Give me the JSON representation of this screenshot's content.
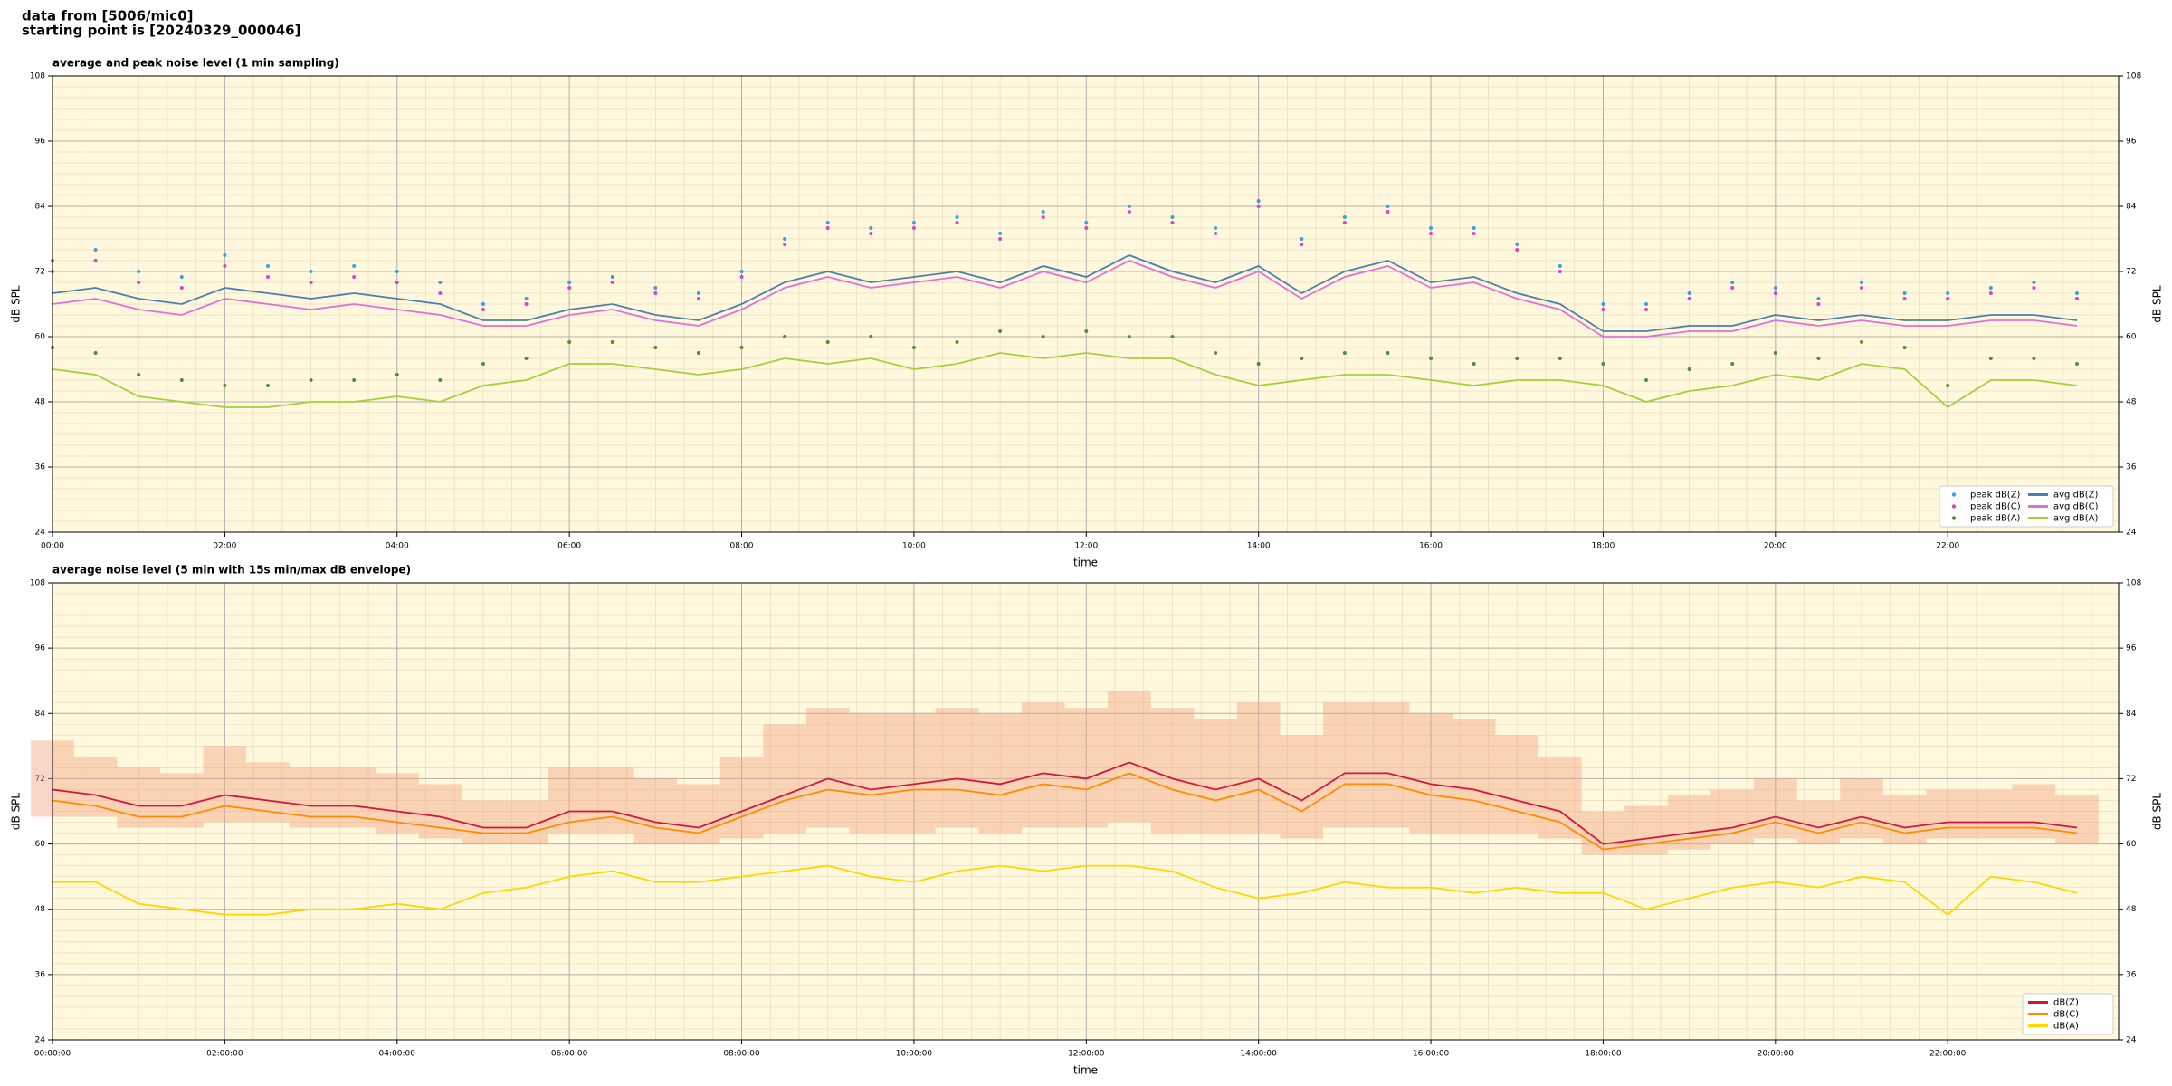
{
  "header": {
    "line1": "data from [5006/mic0]",
    "line2": "starting point is [20240329_000046]"
  },
  "chart_data": [
    {
      "type": "line",
      "title": "average and peak noise level (1 min sampling)",
      "xlabel": "time",
      "ylabel": "dB SPL",
      "y2label": "dB SPL",
      "x": [
        "00:00",
        "00:30",
        "01:00",
        "01:30",
        "02:00",
        "02:30",
        "03:00",
        "03:30",
        "04:00",
        "04:30",
        "05:00",
        "05:30",
        "06:00",
        "06:30",
        "07:00",
        "07:30",
        "08:00",
        "08:30",
        "09:00",
        "09:30",
        "10:00",
        "10:30",
        "11:00",
        "11:30",
        "12:00",
        "12:30",
        "13:00",
        "13:30",
        "14:00",
        "14:30",
        "15:00",
        "15:30",
        "16:00",
        "16:30",
        "17:00",
        "17:30",
        "18:00",
        "18:30",
        "19:00",
        "19:30",
        "20:00",
        "20:30",
        "21:00",
        "21:30",
        "22:00",
        "22:30",
        "23:00",
        "23:30"
      ],
      "xlim": [
        "00:00",
        "23:59"
      ],
      "xticks": [
        "00:00",
        "02:00",
        "04:00",
        "06:00",
        "08:00",
        "10:00",
        "12:00",
        "14:00",
        "16:00",
        "18:00",
        "20:00",
        "22:00"
      ],
      "ylim": [
        24,
        108
      ],
      "yticks": [
        24,
        36,
        48,
        60,
        72,
        84,
        96,
        108
      ],
      "y2lim": [
        24,
        108
      ],
      "y2ticks": [
        24,
        36,
        48,
        60,
        72,
        84,
        96,
        108
      ],
      "grid": true,
      "minor_grid": true,
      "legend": "lower right",
      "legend_columns": 2,
      "series": [
        {
          "name": "peak dB(Z)",
          "type": "scatter",
          "color": "#3aa0e6",
          "values": [
            74,
            76,
            72,
            71,
            75,
            73,
            72,
            73,
            72,
            70,
            66,
            67,
            70,
            71,
            69,
            68,
            72,
            78,
            81,
            80,
            81,
            82,
            79,
            83,
            81,
            84,
            82,
            80,
            85,
            78,
            82,
            84,
            80,
            80,
            77,
            73,
            66,
            66,
            68,
            70,
            69,
            67,
            70,
            68,
            68,
            69,
            70,
            68
          ]
        },
        {
          "name": "peak dB(C)",
          "type": "scatter",
          "color": "#e040d0",
          "values": [
            72,
            74,
            70,
            69,
            73,
            71,
            70,
            71,
            70,
            68,
            65,
            66,
            69,
            70,
            68,
            67,
            71,
            77,
            80,
            79,
            80,
            81,
            78,
            82,
            80,
            83,
            81,
            79,
            84,
            77,
            81,
            83,
            79,
            79,
            76,
            72,
            65,
            65,
            67,
            69,
            68,
            66,
            69,
            67,
            67,
            68,
            69,
            67
          ]
        },
        {
          "name": "peak dB(A)",
          "type": "scatter",
          "color": "#4f8f3a",
          "values": [
            58,
            57,
            53,
            52,
            51,
            51,
            52,
            52,
            53,
            52,
            55,
            56,
            59,
            59,
            58,
            57,
            58,
            60,
            59,
            60,
            58,
            59,
            61,
            60,
            61,
            60,
            60,
            57,
            55,
            56,
            57,
            57,
            56,
            55,
            56,
            56,
            55,
            52,
            54,
            55,
            57,
            56,
            59,
            58,
            51,
            56,
            56,
            55
          ]
        },
        {
          "name": "avg dB(Z)",
          "type": "line",
          "color": "#4a7fb0",
          "values": [
            68,
            69,
            67,
            66,
            69,
            68,
            67,
            68,
            67,
            66,
            63,
            63,
            65,
            66,
            64,
            63,
            66,
            70,
            72,
            70,
            71,
            72,
            70,
            73,
            71,
            75,
            72,
            70,
            73,
            68,
            72,
            74,
            70,
            71,
            68,
            66,
            61,
            61,
            62,
            62,
            64,
            63,
            64,
            63,
            63,
            64,
            64,
            63
          ]
        },
        {
          "name": "avg dB(C)",
          "type": "line",
          "color": "#e070d8",
          "values": [
            66,
            67,
            65,
            64,
            67,
            66,
            65,
            66,
            65,
            64,
            62,
            62,
            64,
            65,
            63,
            62,
            65,
            69,
            71,
            69,
            70,
            71,
            69,
            72,
            70,
            74,
            71,
            69,
            72,
            67,
            71,
            73,
            69,
            70,
            67,
            65,
            60,
            60,
            61,
            61,
            63,
            62,
            63,
            62,
            62,
            63,
            63,
            62
          ]
        },
        {
          "name": "avg dB(A)",
          "type": "line",
          "color": "#a4cf3c",
          "values": [
            54,
            53,
            49,
            48,
            47,
            47,
            48,
            48,
            49,
            48,
            51,
            52,
            55,
            55,
            54,
            53,
            54,
            56,
            55,
            56,
            54,
            55,
            57,
            56,
            57,
            56,
            56,
            53,
            51,
            52,
            53,
            53,
            52,
            51,
            52,
            52,
            51,
            48,
            50,
            51,
            53,
            52,
            55,
            54,
            47,
            52,
            52,
            51
          ]
        }
      ]
    },
    {
      "type": "line",
      "title": "average noise level (5 min with 15s min/max dB envelope)",
      "xlabel": "time",
      "ylabel": "dB SPL",
      "y2label": "dB SPL",
      "x": [
        "00:00:00",
        "00:30:00",
        "01:00:00",
        "01:30:00",
        "02:00:00",
        "02:30:00",
        "03:00:00",
        "03:30:00",
        "04:00:00",
        "04:30:00",
        "05:00:00",
        "05:30:00",
        "06:00:00",
        "06:30:00",
        "07:00:00",
        "07:30:00",
        "08:00:00",
        "08:30:00",
        "09:00:00",
        "09:30:00",
        "10:00:00",
        "10:30:00",
        "11:00:00",
        "11:30:00",
        "12:00:00",
        "12:30:00",
        "13:00:00",
        "13:30:00",
        "14:00:00",
        "14:30:00",
        "15:00:00",
        "15:30:00",
        "16:00:00",
        "16:30:00",
        "17:00:00",
        "17:30:00",
        "18:00:00",
        "18:30:00",
        "19:00:00",
        "19:30:00",
        "20:00:00",
        "20:30:00",
        "21:00:00",
        "21:30:00",
        "22:00:00",
        "22:30:00",
        "23:00:00",
        "23:30:00"
      ],
      "xlim": [
        "00:00:00",
        "23:59:00"
      ],
      "xticks": [
        "00:00:00",
        "02:00:00",
        "04:00:00",
        "06:00:00",
        "08:00:00",
        "10:00:00",
        "12:00:00",
        "14:00:00",
        "16:00:00",
        "18:00:00",
        "20:00:00",
        "22:00:00"
      ],
      "ylim": [
        24,
        108
      ],
      "yticks": [
        24,
        36,
        48,
        60,
        72,
        84,
        96,
        108
      ],
      "y2lim": [
        24,
        108
      ],
      "y2ticks": [
        24,
        36,
        48,
        60,
        72,
        84,
        96,
        108
      ],
      "grid": true,
      "minor_grid": true,
      "legend": "lower right",
      "legend_columns": 1,
      "envelope": {
        "color": "#f4a582",
        "low": [
          65,
          65,
          63,
          63,
          64,
          64,
          63,
          63,
          62,
          61,
          60,
          60,
          62,
          62,
          60,
          60,
          61,
          62,
          63,
          62,
          62,
          63,
          62,
          63,
          63,
          64,
          62,
          62,
          62,
          61,
          63,
          63,
          62,
          62,
          62,
          61,
          58,
          58,
          59,
          60,
          61,
          60,
          61,
          60,
          61,
          61,
          61,
          60
        ],
        "high": [
          79,
          76,
          74,
          73,
          78,
          75,
          74,
          74,
          73,
          71,
          68,
          68,
          74,
          74,
          72,
          71,
          76,
          82,
          85,
          84,
          84,
          85,
          84,
          86,
          85,
          88,
          85,
          83,
          86,
          80,
          86,
          86,
          84,
          83,
          80,
          76,
          66,
          67,
          69,
          70,
          72,
          68,
          72,
          69,
          70,
          70,
          71,
          69
        ]
      },
      "series": [
        {
          "name": "dB(Z)",
          "type": "line",
          "color": "#d6143c",
          "values": [
            70,
            69,
            67,
            67,
            69,
            68,
            67,
            67,
            66,
            65,
            63,
            63,
            66,
            66,
            64,
            63,
            66,
            69,
            72,
            70,
            71,
            72,
            71,
            73,
            72,
            75,
            72,
            70,
            72,
            68,
            73,
            73,
            71,
            70,
            68,
            66,
            60,
            61,
            62,
            63,
            65,
            63,
            65,
            63,
            64,
            64,
            64,
            63
          ]
        },
        {
          "name": "dB(C)",
          "type": "line",
          "color": "#ff8c00",
          "values": [
            68,
            67,
            65,
            65,
            67,
            66,
            65,
            65,
            64,
            63,
            62,
            62,
            64,
            65,
            63,
            62,
            65,
            68,
            70,
            69,
            70,
            70,
            69,
            71,
            70,
            73,
            70,
            68,
            70,
            66,
            71,
            71,
            69,
            68,
            66,
            64,
            59,
            60,
            61,
            62,
            64,
            62,
            64,
            62,
            63,
            63,
            63,
            62
          ]
        },
        {
          "name": "dB(A)",
          "type": "line",
          "color": "#ffd700",
          "values": [
            53,
            53,
            49,
            48,
            47,
            47,
            48,
            48,
            49,
            48,
            51,
            52,
            54,
            55,
            53,
            53,
            54,
            55,
            56,
            54,
            53,
            55,
            56,
            55,
            56,
            56,
            55,
            52,
            50,
            51,
            53,
            52,
            52,
            51,
            52,
            51,
            51,
            48,
            50,
            52,
            53,
            52,
            54,
            53,
            47,
            54,
            53,
            51
          ]
        }
      ]
    }
  ]
}
